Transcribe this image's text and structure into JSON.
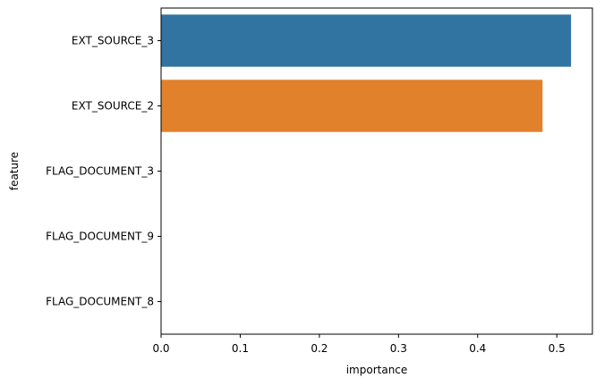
{
  "chart_data": {
    "type": "bar",
    "orientation": "horizontal",
    "categories": [
      "EXT_SOURCE_3",
      "EXT_SOURCE_2",
      "FLAG_DOCUMENT_3",
      "FLAG_DOCUMENT_9",
      "FLAG_DOCUMENT_8"
    ],
    "values": [
      0.518,
      0.482,
      0.0,
      0.0,
      0.0
    ],
    "colors": [
      "#3274a1",
      "#e1812c",
      "#3a923a",
      "#c03d3e",
      "#9372b2"
    ],
    "xlabel": "importance",
    "ylabel": "feature",
    "xlim": [
      0,
      0.545
    ],
    "xticks": [
      0.0,
      0.1,
      0.2,
      0.3,
      0.4,
      0.5
    ],
    "xtick_labels": [
      "0.0",
      "0.1",
      "0.2",
      "0.3",
      "0.4",
      "0.5"
    ],
    "grid": false,
    "legend": "none"
  }
}
